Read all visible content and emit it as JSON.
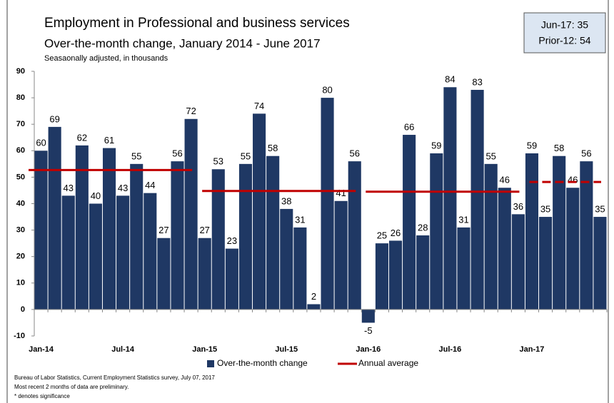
{
  "chart_data": {
    "type": "bar",
    "title": "Employment in Professional and business services",
    "subtitle": "Over-the-month change, January 2014 - June 2017",
    "y_axis_label": "Seasaonally adjusted, in thousands",
    "info_box": [
      "Jun-17: 35",
      "Prior-12: 54"
    ],
    "categories": [
      "Jan-14",
      null,
      null,
      null,
      null,
      null,
      "Jul-14",
      null,
      null,
      null,
      null,
      null,
      "Jan-15",
      null,
      null,
      null,
      null,
      null,
      "Jul-15",
      null,
      null,
      null,
      null,
      null,
      "Jan-16",
      null,
      null,
      null,
      null,
      null,
      "Jul-16",
      null,
      null,
      null,
      null,
      null,
      "Jan-17",
      null,
      null,
      null,
      null,
      null
    ],
    "series": [
      {
        "name": "Over-the-month change",
        "color": "#1f3864",
        "values": [
          60,
          69,
          43,
          62,
          40,
          61,
          43,
          55,
          44,
          27,
          56,
          72,
          27,
          53,
          23,
          55,
          74,
          58,
          38,
          31,
          2,
          80,
          41,
          56,
          -5,
          25,
          26,
          66,
          28,
          59,
          84,
          31,
          83,
          55,
          46,
          36,
          59,
          35,
          58,
          46,
          56,
          35
        ]
      }
    ],
    "annual_average": {
      "name": "Annual average",
      "color": "#c00000",
      "values": [
        52.7,
        44.8,
        44.5,
        48.2
      ]
    },
    "ylim": [
      -10,
      90
    ],
    "yticks": [
      -10,
      0,
      10,
      20,
      30,
      40,
      50,
      60,
      70,
      80,
      90
    ],
    "footnotes": [
      "Bureau of Labor Statistics, Current Employment Statistics survey, July 07, 2017",
      "Most recent 2 months of data are preliminary.",
      "* denotes significance"
    ]
  }
}
